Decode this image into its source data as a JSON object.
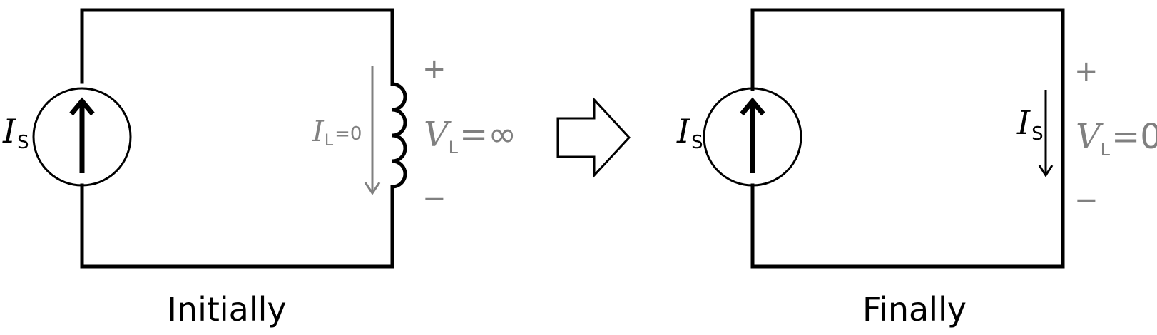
{
  "left": {
    "caption": "Initially",
    "source": {
      "sym": "I",
      "sub": "S"
    },
    "current": {
      "sym": "I",
      "sub": "L",
      "value": "=0"
    },
    "voltage": {
      "sym": "V",
      "sub": "L",
      "value": "=∞"
    },
    "plus": "+",
    "minus": "−"
  },
  "right": {
    "caption": "Finally",
    "source": {
      "sym": "I",
      "sub": "S"
    },
    "current": {
      "sym": "I",
      "sub": "S"
    },
    "voltage": {
      "sym": "V",
      "sub": "L",
      "value": "=0"
    },
    "plus": "+",
    "minus": "−"
  },
  "colors": {
    "wire": "#000000",
    "annotation": "#808080"
  }
}
